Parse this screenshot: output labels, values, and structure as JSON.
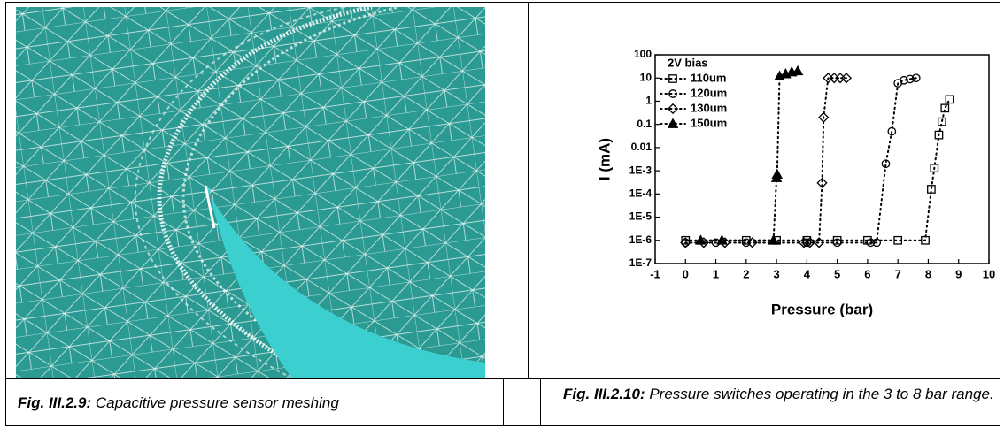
{
  "chart_data": {
    "type": "scatter",
    "ylog": true,
    "legend": "upper left",
    "legend_title": "2V bias",
    "xlabel": "Pressure (bar)",
    "ylabel": "I (mA)",
    "xlim": [
      -1,
      10
    ],
    "xticks": [
      -1,
      0,
      1,
      2,
      3,
      4,
      5,
      6,
      7,
      8,
      9,
      10
    ],
    "ylim": [
      1e-07,
      100
    ],
    "yticks": [
      {
        "value": 1e-07,
        "label": "1E-7"
      },
      {
        "value": 1e-06,
        "label": "1E-6"
      },
      {
        "value": 1e-05,
        "label": "1E-5"
      },
      {
        "value": 0.0001,
        "label": "1E-4"
      },
      {
        "value": 0.001,
        "label": "1E-3"
      },
      0.01,
      0.1,
      1,
      10,
      100
    ],
    "series": [
      {
        "name": "110um",
        "marker": "square",
        "color": "#000000",
        "x": [
          0,
          2,
          3,
          4,
          5,
          6,
          7,
          7.9,
          8.1,
          8.2,
          8.35,
          8.45,
          8.55,
          8.7
        ],
        "values": [
          1e-06,
          1e-06,
          1e-06,
          1e-06,
          1e-06,
          1e-06,
          1e-06,
          1e-06,
          0.00016,
          0.0013,
          0.035,
          0.13,
          0.5,
          1.2
        ]
      },
      {
        "name": "120um",
        "marker": "circle",
        "color": "#000000",
        "x": [
          0,
          1,
          2,
          4,
          5,
          6.1,
          6.3,
          6.6,
          6.8,
          7.0,
          7.2,
          7.4,
          7.6
        ],
        "values": [
          8e-07,
          8e-07,
          8e-07,
          8e-07,
          8e-07,
          8e-07,
          8e-07,
          0.002,
          0.05,
          6,
          8,
          9,
          10
        ]
      },
      {
        "name": "130um",
        "marker": "diamond",
        "color": "#000000",
        "x": [
          0,
          0.6,
          1.3,
          2.2,
          3.9,
          4.1,
          4.4,
          4.5,
          4.55,
          4.7,
          4.9,
          5.1,
          5.3
        ],
        "values": [
          8e-07,
          8e-07,
          8e-07,
          8e-07,
          8e-07,
          8e-07,
          8e-07,
          0.0003,
          0.2,
          10,
          10,
          10,
          10
        ]
      },
      {
        "name": "150um",
        "marker": "triangle",
        "color": "#000000",
        "x": [
          0.5,
          1.2,
          2.9,
          3.0,
          3.02,
          3.1,
          3.3,
          3.5,
          3.7
        ],
        "values": [
          1e-06,
          1e-06,
          1e-06,
          0.0005,
          0.0007,
          12,
          15,
          18,
          20
        ]
      }
    ]
  },
  "captions": [
    {
      "label": "Fig. III.2.9:",
      "text": "Capacitive pressure sensor meshing"
    },
    {
      "label": "Fig. III.2.10:",
      "text": "Pressure switches operating in the 3 to 8 bar range."
    }
  ]
}
